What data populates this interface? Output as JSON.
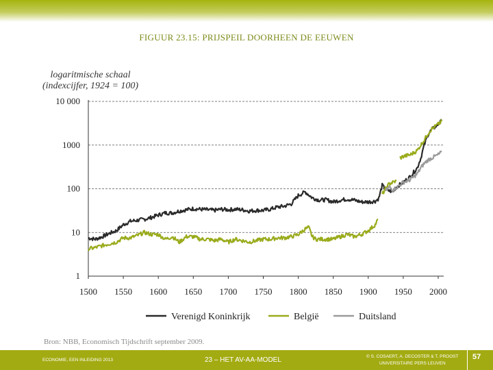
{
  "figure": {
    "title": "FIGUUR 23.15: PRIJSPEIL DOORHEEN DE EEUWEN",
    "yaxis_note_line1": "logaritmische schaal",
    "yaxis_note_line2": "(indexcijfer, 1924 = 100)",
    "source": "Bron: NBB, Economisch Tijdschrift september 2009."
  },
  "footer": {
    "left": "ECONOMIE, EEN INLEIDING 2013",
    "center": "23 – HET AV-AA-MODEL",
    "right_line1": "© S. COSAERT, A. DECOSTER & T. PROOST",
    "right_line2": "UNIVERSITAIRE PERS LEUVEN",
    "page": "57"
  },
  "colors": {
    "topbar": "#a6b40e",
    "title": "#7d8a1a",
    "footer": "#a3ab12",
    "uk": "#2a2a2a",
    "be": "#9aab1c",
    "de": "#9a9a9a"
  },
  "chart_data": {
    "type": "line",
    "title": "FIGUUR 23.15: PRIJSPEIL DOORHEEN DE EEUWEN",
    "xlabel": "",
    "ylabel": "logaritmische schaal (indexcijfer, 1924 = 100)",
    "xlim": [
      1500,
      2000
    ],
    "ylim": [
      1,
      10000
    ],
    "yscale": "log",
    "x_ticks": [
      1500,
      1550,
      1600,
      1650,
      1700,
      1750,
      1800,
      1850,
      1900,
      1950,
      2000
    ],
    "y_ticks": [
      1,
      10,
      100,
      1000,
      10000
    ],
    "y_tick_labels": [
      "1",
      "10",
      "100",
      "1000",
      "10 000"
    ],
    "grid": "horizontal dashed",
    "legend": "bottom",
    "series": [
      {
        "name": "Verenigd Koninkrijk",
        "color": "#2a2a2a",
        "points": [
          [
            1500,
            7.5
          ],
          [
            1510,
            7
          ],
          [
            1520,
            8
          ],
          [
            1530,
            9.5
          ],
          [
            1540,
            11
          ],
          [
            1550,
            15
          ],
          [
            1560,
            18
          ],
          [
            1570,
            19
          ],
          [
            1580,
            20
          ],
          [
            1590,
            22
          ],
          [
            1600,
            25
          ],
          [
            1610,
            28
          ],
          [
            1620,
            28
          ],
          [
            1630,
            31
          ],
          [
            1640,
            33
          ],
          [
            1650,
            35
          ],
          [
            1660,
            34
          ],
          [
            1670,
            33
          ],
          [
            1680,
            32
          ],
          [
            1690,
            34
          ],
          [
            1700,
            33
          ],
          [
            1710,
            34
          ],
          [
            1720,
            33
          ],
          [
            1730,
            31
          ],
          [
            1740,
            32
          ],
          [
            1750,
            32
          ],
          [
            1760,
            34
          ],
          [
            1770,
            38
          ],
          [
            1780,
            40
          ],
          [
            1790,
            45
          ],
          [
            1800,
            70
          ],
          [
            1810,
            85
          ],
          [
            1820,
            62
          ],
          [
            1830,
            55
          ],
          [
            1840,
            56
          ],
          [
            1850,
            50
          ],
          [
            1860,
            55
          ],
          [
            1870,
            58
          ],
          [
            1880,
            55
          ],
          [
            1890,
            50
          ],
          [
            1900,
            50
          ],
          [
            1910,
            52
          ],
          [
            1915,
            60
          ],
          [
            1920,
            120
          ],
          [
            1925,
            95
          ],
          [
            1930,
            90
          ],
          [
            1935,
            85
          ],
          [
            1940,
            110
          ],
          [
            1950,
            140
          ],
          [
            1960,
            190
          ],
          [
            1970,
            300
          ],
          [
            1975,
            500
          ],
          [
            1980,
            1000
          ],
          [
            1985,
            1700
          ],
          [
            1990,
            2200
          ],
          [
            2000,
            3000
          ],
          [
            2005,
            3600
          ]
        ]
      },
      {
        "name": "België",
        "color": "#9aab1c",
        "segments": [
          [
            [
              1500,
              4.2
            ],
            [
              1510,
              4.5
            ],
            [
              1520,
              5
            ],
            [
              1530,
              5.5
            ],
            [
              1540,
              6
            ],
            [
              1550,
              7.5
            ],
            [
              1560,
              7.5
            ],
            [
              1570,
              8.5
            ],
            [
              1580,
              10
            ],
            [
              1590,
              9
            ],
            [
              1600,
              9
            ],
            [
              1610,
              7
            ],
            [
              1620,
              8
            ],
            [
              1630,
              6
            ],
            [
              1640,
              8
            ],
            [
              1650,
              8
            ],
            [
              1660,
              7
            ],
            [
              1670,
              7
            ],
            [
              1680,
              6.5
            ],
            [
              1690,
              7
            ],
            [
              1700,
              6
            ],
            [
              1710,
              7
            ],
            [
              1720,
              6.5
            ],
            [
              1730,
              6
            ],
            [
              1740,
              6.5
            ],
            [
              1750,
              7
            ],
            [
              1760,
              7
            ],
            [
              1770,
              7.5
            ],
            [
              1780,
              7.5
            ],
            [
              1790,
              8
            ],
            [
              1800,
              9
            ],
            [
              1810,
              12
            ],
            [
              1815,
              13
            ],
            [
              1820,
              8
            ],
            [
              1825,
              7
            ],
            [
              1830,
              7
            ],
            [
              1840,
              7
            ],
            [
              1850,
              7
            ],
            [
              1860,
              8
            ],
            [
              1870,
              9
            ],
            [
              1880,
              8
            ],
            [
              1890,
              9
            ],
            [
              1900,
              11
            ],
            [
              1910,
              15
            ],
            [
              1914,
              20
            ]
          ],
          [
            [
              1920,
              75
            ],
            [
              1925,
              100
            ],
            [
              1930,
              130
            ],
            [
              1935,
              140
            ],
            [
              1940,
              150
            ]
          ],
          [
            [
              1945,
              500
            ],
            [
              1950,
              550
            ],
            [
              1960,
              600
            ],
            [
              1970,
              750
            ],
            [
              1975,
              1000
            ],
            [
              1980,
              1300
            ],
            [
              1985,
              1800
            ],
            [
              1990,
              2300
            ],
            [
              2000,
              3000
            ],
            [
              2005,
              3500
            ]
          ]
        ]
      },
      {
        "name": "Duitsland",
        "color": "#9a9a9a",
        "points": [
          [
            1925,
            90
          ],
          [
            1930,
            110
          ],
          [
            1935,
            95
          ],
          [
            1940,
            105
          ],
          [
            1950,
            140
          ],
          [
            1960,
            160
          ],
          [
            1970,
            220
          ],
          [
            1975,
            300
          ],
          [
            1980,
            380
          ],
          [
            1985,
            450
          ],
          [
            1990,
            500
          ],
          [
            2000,
            600
          ],
          [
            2005,
            700
          ]
        ]
      }
    ]
  }
}
